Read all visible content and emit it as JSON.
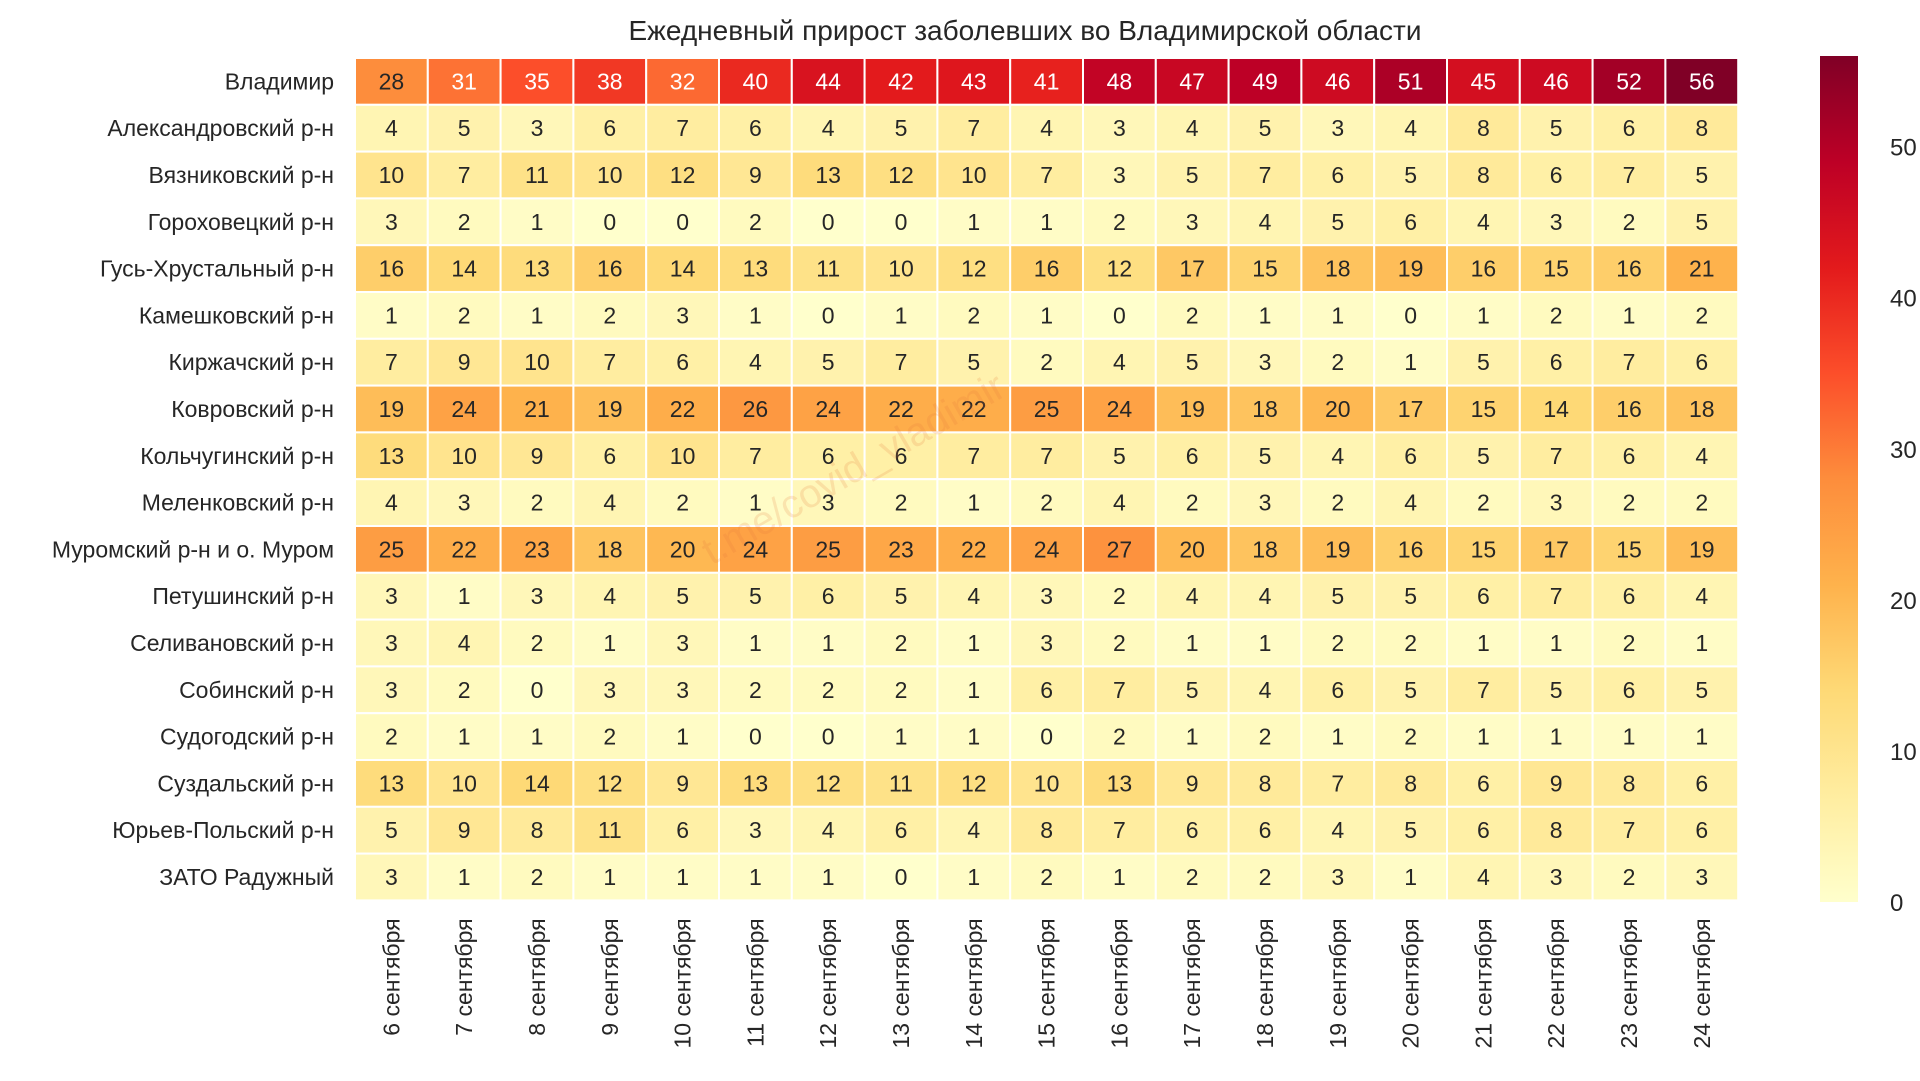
{
  "chart_data": {
    "type": "heatmap",
    "title": "Ежедневный прирост заболевших во Владимирской области",
    "xlabel": "",
    "ylabel": "",
    "rows": [
      "Владимир",
      "Александровский р-н",
      "Вязниковский р-н",
      "Гороховецкий р-н",
      "Гусь-Хрустальный р-н",
      "Камешковский р-н",
      "Киржачский р-н",
      "Ковровский р-н",
      "Кольчугинский р-н",
      "Меленковский р-н",
      "Муромский р-н и о. Муром",
      "Петушинский р-н",
      "Селивановский р-н",
      "Собинский р-н",
      "Судогодский р-н",
      "Суздальский р-н",
      "Юрьев-Польский р-н",
      "ЗАТО Радужный"
    ],
    "columns": [
      "6 сентября",
      "7 сентября",
      "8 сентября",
      "9 сентября",
      "10 сентября",
      "11 сентября",
      "12 сентября",
      "13 сентября",
      "14 сентября",
      "15 сентября",
      "16 сентября",
      "17 сентября",
      "18 сентября",
      "19 сентября",
      "20 сентября",
      "21 сентября",
      "22 сентября",
      "23 сентября",
      "24 сентября"
    ],
    "values": [
      [
        28,
        31,
        35,
        38,
        32,
        40,
        44,
        42,
        43,
        41,
        48,
        47,
        49,
        46,
        51,
        45,
        46,
        52,
        56
      ],
      [
        4,
        5,
        3,
        6,
        7,
        6,
        4,
        5,
        7,
        4,
        3,
        4,
        5,
        3,
        4,
        8,
        5,
        6,
        8
      ],
      [
        10,
        7,
        11,
        10,
        12,
        9,
        13,
        12,
        10,
        7,
        3,
        5,
        7,
        6,
        5,
        8,
        6,
        7,
        5
      ],
      [
        3,
        2,
        1,
        0,
        0,
        2,
        0,
        0,
        1,
        1,
        2,
        3,
        4,
        5,
        6,
        4,
        3,
        2,
        5
      ],
      [
        16,
        14,
        13,
        16,
        14,
        13,
        11,
        10,
        12,
        16,
        12,
        17,
        15,
        18,
        19,
        16,
        15,
        16,
        21
      ],
      [
        1,
        2,
        1,
        2,
        3,
        1,
        0,
        1,
        2,
        1,
        0,
        2,
        1,
        1,
        0,
        1,
        2,
        1,
        2
      ],
      [
        7,
        9,
        10,
        7,
        6,
        4,
        5,
        7,
        5,
        2,
        4,
        5,
        3,
        2,
        1,
        5,
        6,
        7,
        6
      ],
      [
        19,
        24,
        21,
        19,
        22,
        26,
        24,
        22,
        22,
        25,
        24,
        19,
        18,
        20,
        17,
        15,
        14,
        16,
        18
      ],
      [
        13,
        10,
        9,
        6,
        10,
        7,
        6,
        6,
        7,
        7,
        5,
        6,
        5,
        4,
        6,
        5,
        7,
        6,
        4
      ],
      [
        4,
        3,
        2,
        4,
        2,
        1,
        3,
        2,
        1,
        2,
        4,
        2,
        3,
        2,
        4,
        2,
        3,
        2,
        2
      ],
      [
        25,
        22,
        23,
        18,
        20,
        24,
        25,
        23,
        22,
        24,
        27,
        20,
        18,
        19,
        16,
        15,
        17,
        15,
        19
      ],
      [
        3,
        1,
        3,
        4,
        5,
        5,
        6,
        5,
        4,
        3,
        2,
        4,
        4,
        5,
        5,
        6,
        7,
        6,
        4
      ],
      [
        3,
        4,
        2,
        1,
        3,
        1,
        1,
        2,
        1,
        3,
        2,
        1,
        1,
        2,
        2,
        1,
        1,
        2,
        1
      ],
      [
        3,
        2,
        0,
        3,
        3,
        2,
        2,
        2,
        1,
        6,
        7,
        5,
        4,
        6,
        5,
        7,
        5,
        6,
        5
      ],
      [
        2,
        1,
        1,
        2,
        1,
        0,
        0,
        1,
        1,
        0,
        2,
        1,
        2,
        1,
        2,
        1,
        1,
        1,
        1
      ],
      [
        13,
        10,
        14,
        12,
        9,
        13,
        12,
        11,
        12,
        10,
        13,
        9,
        8,
        7,
        8,
        6,
        9,
        8,
        6
      ],
      [
        5,
        9,
        8,
        11,
        6,
        3,
        4,
        6,
        4,
        8,
        7,
        6,
        6,
        4,
        5,
        6,
        8,
        7,
        6
      ],
      [
        3,
        1,
        2,
        1,
        1,
        1,
        1,
        0,
        1,
        2,
        1,
        2,
        2,
        3,
        1,
        4,
        3,
        2,
        3
      ]
    ],
    "vmin": 0,
    "vmax": 56,
    "colormap": "YlOrRd",
    "colorbar_ticks": [
      0,
      10,
      20,
      30,
      40,
      50
    ],
    "colorbar_tick_labels": [
      "0",
      "10",
      "20",
      "30",
      "40",
      "50"
    ],
    "annotated": true,
    "grid": false,
    "watermark_text": "t.me/covid_vladimir"
  }
}
